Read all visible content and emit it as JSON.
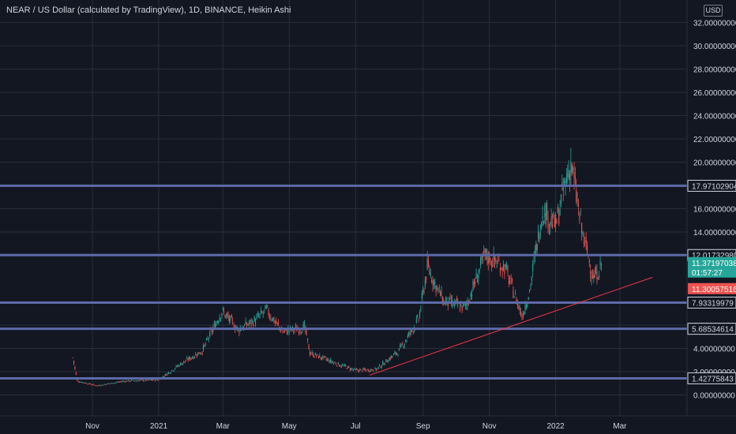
{
  "header": {
    "title": "NEAR / US Dollar (calculated by TradingView), 1D, BINANCE, Heikin Ashi",
    "currency": "USD"
  },
  "colors": {
    "background": "#131722",
    "grid": "#2a2e39",
    "up": "#26a69a",
    "down": "#ef5350",
    "level_line": "#5d6aa8",
    "trend_line": "#f23645"
  },
  "chart_data": {
    "type": "candlestick",
    "ylim": [
      -1.8,
      33
    ],
    "y_ticks": [
      {
        "value": 0,
        "label": "0.00000000"
      },
      {
        "value": 2,
        "label": "2.00000000"
      },
      {
        "value": 4,
        "label": "4.00000000"
      },
      {
        "value": 6,
        "label": "6.00000000"
      },
      {
        "value": 14,
        "label": "14.00000000"
      },
      {
        "value": 16,
        "label": "16.00000000"
      },
      {
        "value": 20,
        "label": "20.00000000"
      },
      {
        "value": 22,
        "label": "22.00000000"
      },
      {
        "value": 24,
        "label": "24.00000000"
      },
      {
        "value": 26,
        "label": "26.00000000"
      },
      {
        "value": 28,
        "label": "28.00000000"
      },
      {
        "value": 30,
        "label": "30.00000000"
      },
      {
        "value": 32,
        "label": "32.00000000"
      }
    ],
    "x_ticks": [
      {
        "date": "2020-11-01",
        "label": "Nov"
      },
      {
        "date": "2021-01-01",
        "label": "2021"
      },
      {
        "date": "2021-03-01",
        "label": "Mar"
      },
      {
        "date": "2021-05-01",
        "label": "May"
      },
      {
        "date": "2021-07-01",
        "label": "Jul"
      },
      {
        "date": "2021-09-01",
        "label": "Sep"
      },
      {
        "date": "2021-11-01",
        "label": "Nov"
      },
      {
        "date": "2022-01-01",
        "label": "2022"
      },
      {
        "date": "2022-03-01",
        "label": "Mar"
      }
    ],
    "levels": [
      {
        "value": 17.97102904,
        "label": "17.97102904"
      },
      {
        "value": 12.0173298,
        "label": "12.01732980"
      },
      {
        "value": 7.93319979,
        "label": "7.93319979"
      },
      {
        "value": 5.68534614,
        "label": "5.68534614"
      },
      {
        "value": 1.42775843,
        "label": "1.42775843"
      }
    ],
    "price_tags": [
      {
        "value": 11.37197038,
        "label": "11.37197038",
        "sublabel": "01:57:27",
        "color": "#26a69a"
      },
      {
        "value": 11.30057516,
        "label": "11.30057516",
        "color": "#ef5350"
      }
    ],
    "trendline": [
      {
        "date": "2021-07-14",
        "value": 1.7
      },
      {
        "date": "2022-03-31",
        "value": 10.1
      }
    ],
    "price_path": [
      {
        "date": "2020-10-14",
        "value": 3.2
      },
      {
        "date": "2020-10-18",
        "value": 1.2
      },
      {
        "date": "2020-11-05",
        "value": 0.8
      },
      {
        "date": "2020-12-01",
        "value": 1.2
      },
      {
        "date": "2021-01-01",
        "value": 1.3
      },
      {
        "date": "2021-01-20",
        "value": 2.6
      },
      {
        "date": "2021-02-10",
        "value": 3.8
      },
      {
        "date": "2021-02-28",
        "value": 7.2
      },
      {
        "date": "2021-03-15",
        "value": 5.6
      },
      {
        "date": "2021-04-01",
        "value": 6.5
      },
      {
        "date": "2021-04-10",
        "value": 7.3
      },
      {
        "date": "2021-04-25",
        "value": 5.4
      },
      {
        "date": "2021-05-15",
        "value": 5.8
      },
      {
        "date": "2021-05-20",
        "value": 3.6
      },
      {
        "date": "2021-06-10",
        "value": 2.8
      },
      {
        "date": "2021-07-01",
        "value": 2.1
      },
      {
        "date": "2021-07-20",
        "value": 2.2
      },
      {
        "date": "2021-08-10",
        "value": 3.8
      },
      {
        "date": "2021-08-28",
        "value": 6.5
      },
      {
        "date": "2021-09-05",
        "value": 11.0
      },
      {
        "date": "2021-09-20",
        "value": 8.0
      },
      {
        "date": "2021-10-10",
        "value": 7.5
      },
      {
        "date": "2021-10-28",
        "value": 12.0
      },
      {
        "date": "2021-11-15",
        "value": 11.0
      },
      {
        "date": "2021-12-01",
        "value": 6.8
      },
      {
        "date": "2021-12-08",
        "value": 9.0
      },
      {
        "date": "2021-12-20",
        "value": 16.0
      },
      {
        "date": "2022-01-01",
        "value": 14.5
      },
      {
        "date": "2022-01-08",
        "value": 17.5
      },
      {
        "date": "2022-01-15",
        "value": 20.0
      },
      {
        "date": "2022-01-25",
        "value": 14.0
      },
      {
        "date": "2022-02-05",
        "value": 10.0
      },
      {
        "date": "2022-02-12",
        "value": 11.2
      }
    ]
  }
}
